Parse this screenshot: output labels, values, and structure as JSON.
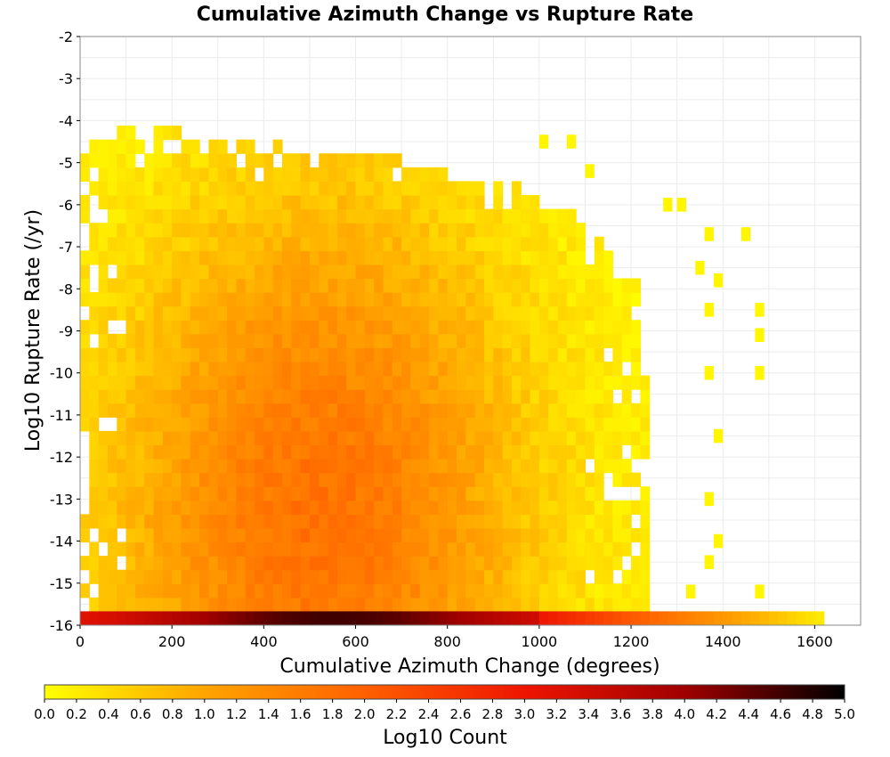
{
  "chart_data": {
    "type": "heatmap",
    "title": "Cumulative Azimuth Change vs Rupture Rate",
    "xlabel": "Cumulative Azimuth Change (degrees)",
    "ylabel": "Log10 Rupture Rate (/yr)",
    "xlim": [
      0,
      1700
    ],
    "ylim": [
      -16,
      -2
    ],
    "x_ticks": [
      "0",
      "200",
      "400",
      "600",
      "800",
      "1000",
      "1200",
      "1400",
      "1600"
    ],
    "y_ticks": [
      "-2",
      "-3",
      "-4",
      "-5",
      "-6",
      "-7",
      "-8",
      "-9",
      "-10",
      "-11",
      "-12",
      "-13",
      "-14",
      "-15",
      "-16"
    ],
    "grid": true,
    "bin_width_x": 20,
    "bin_height_y": 0.33,
    "colorbar": {
      "label": "Log10 Count",
      "range": [
        0.0,
        5.0
      ],
      "ticks": [
        "0.0",
        "0.2",
        "0.4",
        "0.6",
        "0.8",
        "1.0",
        "1.2",
        "1.4",
        "1.6",
        "1.8",
        "2.0",
        "2.2",
        "2.4",
        "2.6",
        "2.8",
        "3.0",
        "3.2",
        "3.4",
        "3.6",
        "3.8",
        "4.0",
        "4.2",
        "4.4",
        "4.6",
        "4.8",
        "5.0"
      ],
      "colors": [
        "#ffff00",
        "#ffa500",
        "#ff6000",
        "#ee1500",
        "#a00000",
        "#000000"
      ]
    },
    "density_model": {
      "peak_x": 520,
      "peak_y": -13.5,
      "peak_log_count": 1.75,
      "bottom_row_y": -16,
      "bottom_row_peak_log_count": 4.6,
      "bottom_row_x_end": 1620
    },
    "isolated_cells": [
      [
        1440,
        -6.7
      ],
      [
        1360,
        -6.7
      ],
      [
        1340,
        -7.5
      ],
      [
        1380,
        -7.8
      ],
      [
        1470,
        -8.5
      ],
      [
        1470,
        -9.1
      ],
      [
        1470,
        -10.0
      ],
      [
        1360,
        -8.5
      ],
      [
        1360,
        -10.0
      ],
      [
        1380,
        -11.5
      ],
      [
        1360,
        -13.0
      ],
      [
        1380,
        -14.0
      ],
      [
        1360,
        -14.5
      ],
      [
        1470,
        -15.2
      ],
      [
        1320,
        -15.2
      ],
      [
        1300,
        -6.0
      ],
      [
        1270,
        -6.0
      ],
      [
        1000,
        -4.5
      ],
      [
        1060,
        -4.5
      ],
      [
        1100,
        -5.2
      ]
    ]
  }
}
